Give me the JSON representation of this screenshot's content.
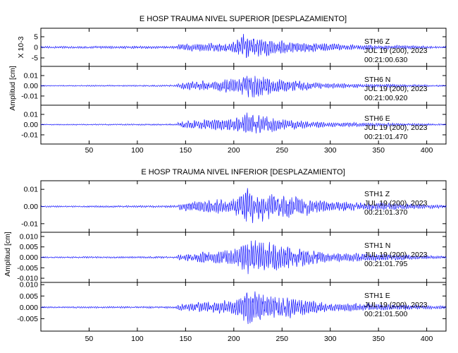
{
  "chart_data": [
    {
      "type": "line",
      "title": "E HOSP TRAUMA NIVEL SUPERIOR [DESPLAZAMIENTO]",
      "ylabel": "Amplitud [cm]",
      "scale_label": "X 10-3",
      "xlim": [
        0,
        420
      ],
      "xticks": [
        "50",
        "100",
        "150",
        "200",
        "250",
        "300",
        "350",
        "400"
      ],
      "grid": false,
      "series_color": "#1a1aff",
      "panels": [
        {
          "station": "STH6",
          "component": "Z",
          "date": "JUL 19 (200), 2023",
          "time": "00:21:00.630",
          "yticks": [
            "5",
            "0",
            "-5"
          ],
          "ytick_values": [
            5,
            0,
            -5
          ],
          "ylim": [
            -9,
            9
          ],
          "envelope": [
            {
              "x": 0,
              "amp": 0.6
            },
            {
              "x": 140,
              "amp": 0.8
            },
            {
              "x": 145,
              "amp": 2.2
            },
            {
              "x": 200,
              "amp": 3.0
            },
            {
              "x": 210,
              "amp": 7.5
            },
            {
              "x": 240,
              "amp": 4.5
            },
            {
              "x": 270,
              "amp": 3.0
            },
            {
              "x": 310,
              "amp": 1.8
            },
            {
              "x": 420,
              "amp": 0.6
            }
          ]
        },
        {
          "station": "STH6",
          "component": "N",
          "date": "JUL 19 (200), 2023",
          "time": "00:21:00.920",
          "yticks": [
            "0.01",
            "0.00",
            "-0.01"
          ],
          "ytick_values": [
            0.01,
            0.0,
            -0.01
          ],
          "ylim": [
            -0.019,
            0.019
          ],
          "envelope": [
            {
              "x": 0,
              "amp": 0.0006
            },
            {
              "x": 140,
              "amp": 0.001
            },
            {
              "x": 145,
              "amp": 0.004
            },
            {
              "x": 200,
              "amp": 0.009
            },
            {
              "x": 215,
              "amp": 0.016
            },
            {
              "x": 250,
              "amp": 0.008
            },
            {
              "x": 300,
              "amp": 0.003
            },
            {
              "x": 420,
              "amp": 0.001
            }
          ]
        },
        {
          "station": "STH6",
          "component": "E",
          "date": "JUL 19 (200), 2023",
          "time": "00:21:01.470",
          "yticks": [
            "0.01",
            "0.00",
            "-0.01"
          ],
          "ytick_values": [
            0.01,
            0.0,
            -0.01
          ],
          "ylim": [
            -0.019,
            0.019
          ],
          "envelope": [
            {
              "x": 0,
              "amp": 0.0006
            },
            {
              "x": 140,
              "amp": 0.001
            },
            {
              "x": 145,
              "amp": 0.005
            },
            {
              "x": 200,
              "amp": 0.008
            },
            {
              "x": 213,
              "amp": 0.015
            },
            {
              "x": 250,
              "amp": 0.007
            },
            {
              "x": 300,
              "amp": 0.003
            },
            {
              "x": 420,
              "amp": 0.001
            }
          ]
        }
      ]
    },
    {
      "type": "line",
      "title": "E HOSP TRAUMA NIVEL INFERIOR [DESPLAZAMIENTO]",
      "ylabel": "Amplitud [cm]",
      "xlim": [
        0,
        420
      ],
      "xticks": [
        "50",
        "100",
        "150",
        "200",
        "250",
        "300",
        "350",
        "400"
      ],
      "grid": false,
      "series_color": "#1a1aff",
      "panels": [
        {
          "station": "STH1",
          "component": "Z",
          "date": "JUL 19 (200), 2023",
          "time": "00:21:01.370",
          "yticks": [
            "0.01",
            "0.00",
            "-0.01"
          ],
          "ytick_values": [
            0.01,
            0.0,
            -0.01
          ],
          "ylim": [
            -0.015,
            0.015
          ],
          "envelope": [
            {
              "x": 0,
              "amp": 0.0005
            },
            {
              "x": 140,
              "amp": 0.0008
            },
            {
              "x": 145,
              "amp": 0.003
            },
            {
              "x": 200,
              "amp": 0.006
            },
            {
              "x": 215,
              "amp": 0.014
            },
            {
              "x": 250,
              "amp": 0.009
            },
            {
              "x": 300,
              "amp": 0.004
            },
            {
              "x": 420,
              "amp": 0.001
            }
          ]
        },
        {
          "station": "STH1",
          "component": "N",
          "date": "JUL 19 (200), 2023",
          "time": "00:21:01.795",
          "yticks": [
            "0.010",
            "0.005",
            "0.000",
            "-0.005",
            "-0.010"
          ],
          "ytick_values": [
            0.01,
            0.005,
            0.0,
            -0.005,
            -0.01
          ],
          "ylim": [
            -0.012,
            0.012
          ],
          "envelope": [
            {
              "x": 0,
              "amp": 0.0004
            },
            {
              "x": 140,
              "amp": 0.0006
            },
            {
              "x": 145,
              "amp": 0.002
            },
            {
              "x": 200,
              "amp": 0.005
            },
            {
              "x": 215,
              "amp": 0.011
            },
            {
              "x": 250,
              "amp": 0.007
            },
            {
              "x": 300,
              "amp": 0.003
            },
            {
              "x": 420,
              "amp": 0.0008
            }
          ]
        },
        {
          "station": "STH1",
          "component": "E",
          "date": "JUL 19 (200), 2023",
          "time": "00:21:01.500",
          "yticks": [
            "0.010",
            "0.005",
            "0.000",
            "-0.005"
          ],
          "ytick_values": [
            0.01,
            0.005,
            0.0,
            -0.005
          ],
          "ylim": [
            -0.0105,
            0.011
          ],
          "envelope": [
            {
              "x": 0,
              "amp": 0.0004
            },
            {
              "x": 140,
              "amp": 0.0006
            },
            {
              "x": 145,
              "amp": 0.002
            },
            {
              "x": 200,
              "amp": 0.004
            },
            {
              "x": 215,
              "amp": 0.01
            },
            {
              "x": 250,
              "amp": 0.006
            },
            {
              "x": 300,
              "amp": 0.0025
            },
            {
              "x": 420,
              "amp": 0.0008
            }
          ]
        }
      ]
    }
  ]
}
